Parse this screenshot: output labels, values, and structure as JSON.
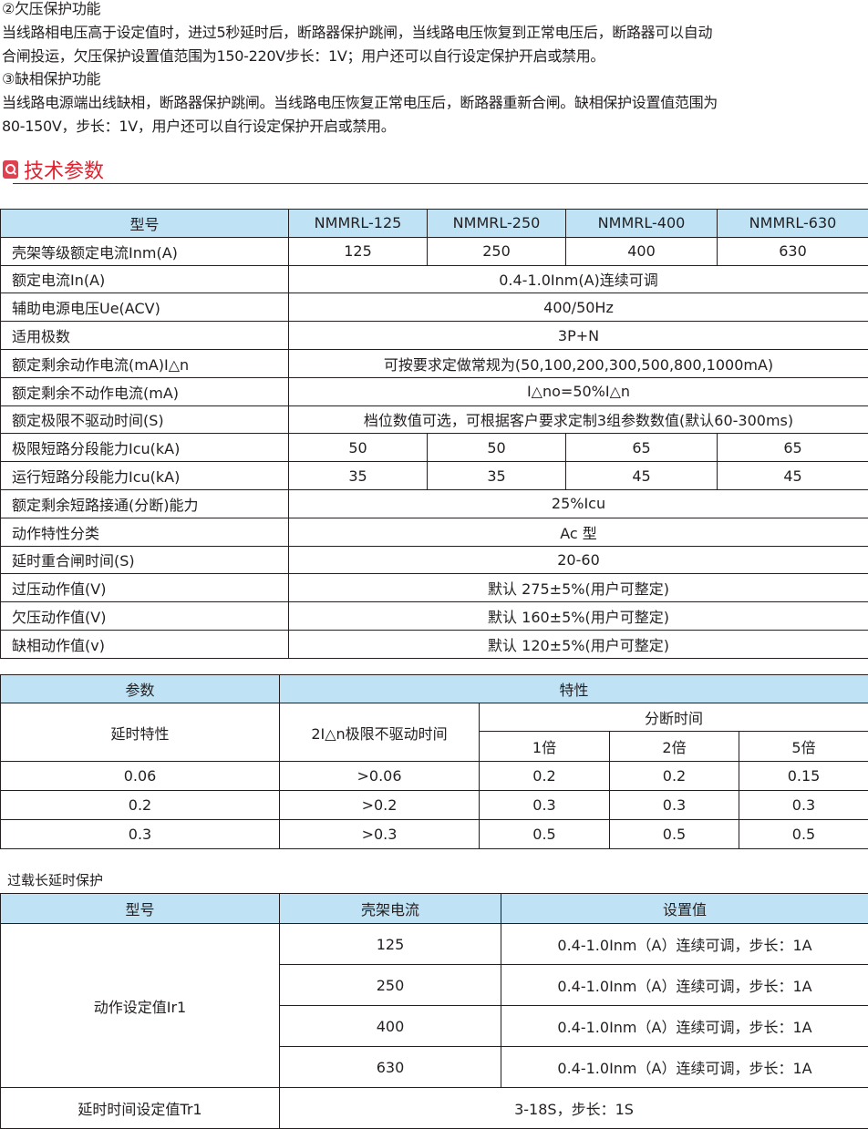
{
  "intro": {
    "undervoltage_title": "②欠压保护功能",
    "undervoltage_line1": "当线路相电压高于设定值时，进过5秒延时后，断路器保护跳闸，当线路电压恢复到正常电压后，断路器可以自动",
    "undervoltage_line2": "合闸投运，欠压保护设置值范围为150-220V步长：1V；用户还可以自行设定保护开启或禁用。",
    "phase_loss_title": "③缺相保护功能",
    "phase_loss_line1": "当线路电源端出线缺相，断路器保护跳闸。当线路电压恢复正常电压后，断路器重新合闸。缺相保护设置值范围为",
    "phase_loss_line2": "80-150V，步长：1V，用户还可以自行设定保护开启或禁用。"
  },
  "section": {
    "title": "技术参数",
    "icon": "search-icon",
    "color": "#e0212f"
  },
  "header_color": "#bfe3f5",
  "spec_table": {
    "header": [
      "型号",
      "NMMRL-125",
      "NMMRL-250",
      "NMMRL-400",
      "NMMRL-630"
    ],
    "rows": [
      [
        "壳架等级额定电流Inm(A)",
        "125",
        "250",
        "400",
        "630"
      ],
      [
        "额定电流In(A)",
        "0.4-1.0Inm(A)连续可调"
      ],
      [
        "辅助电源电压Ue(ACV)",
        "400/50Hz"
      ],
      [
        "适用极数",
        "3P+N"
      ],
      [
        "额定剩余动作电流(mA)I△n",
        "可按要求定做常规为(50,100,200,300,500,800,1000mA)"
      ],
      [
        "额定剩余不动作电流(mA)",
        "I△no=50%I△n"
      ],
      [
        "额定极限不驱动时间(S)",
        "档位数值可选，可根据客户要求定制3组参数数值(默认60-300ms)"
      ],
      [
        "极限短路分段能力Icu(kA)",
        "50",
        "50",
        "65",
        "65"
      ],
      [
        "运行短路分段能力Icu(kA)",
        "35",
        "35",
        "45",
        "45"
      ],
      [
        "额定剩余短路接通(分断)能力",
        "25%Icu"
      ],
      [
        "动作特性分类",
        "Ac 型"
      ],
      [
        "延时重合闸时间(S)",
        "20-60"
      ],
      [
        "过压动作值(V)",
        "默认 275±5%(用户可整定)"
      ],
      [
        "欠压动作值(V)",
        "默认 160±5%(用户可整定)"
      ],
      [
        "缺相动作值(v)",
        "默认 120±5%(用户可整定)"
      ]
    ]
  },
  "delay_table": {
    "h_param": "参数",
    "h_char": "特性",
    "h_delay": "延时特性",
    "h_nodrive": "2I△n极限不驱动时间",
    "h_break": "分断时间",
    "h_mult": [
      "1倍",
      "2倍",
      "5倍"
    ],
    "rows": [
      [
        "0.06",
        ">0.06",
        "0.2",
        "0.2",
        "0.15"
      ],
      [
        "0.2",
        ">0.2",
        "0.3",
        "0.3",
        "0.3"
      ],
      [
        "0.3",
        ">0.3",
        "0.5",
        "0.5",
        "0.5"
      ]
    ]
  },
  "overload": {
    "caption": "过载长延时保护",
    "header": [
      "型号",
      "壳架电流",
      "设置值"
    ],
    "ir1_label": "动作设定值Ir1",
    "rows": [
      [
        "125",
        "0.4-1.0Inm（A）连续可调，步长：1A"
      ],
      [
        "250",
        "0.4-1.0Inm（A）连续可调，步长：1A"
      ],
      [
        "400",
        "0.4-1.0Inm（A）连续可调，步长：1A"
      ],
      [
        "630",
        "0.4-1.0Inm（A）连续可调，步长：1A"
      ]
    ],
    "tr1_label": "延时时间设定值Tr1",
    "tr1_value": "3-18S，步长：1S"
  }
}
